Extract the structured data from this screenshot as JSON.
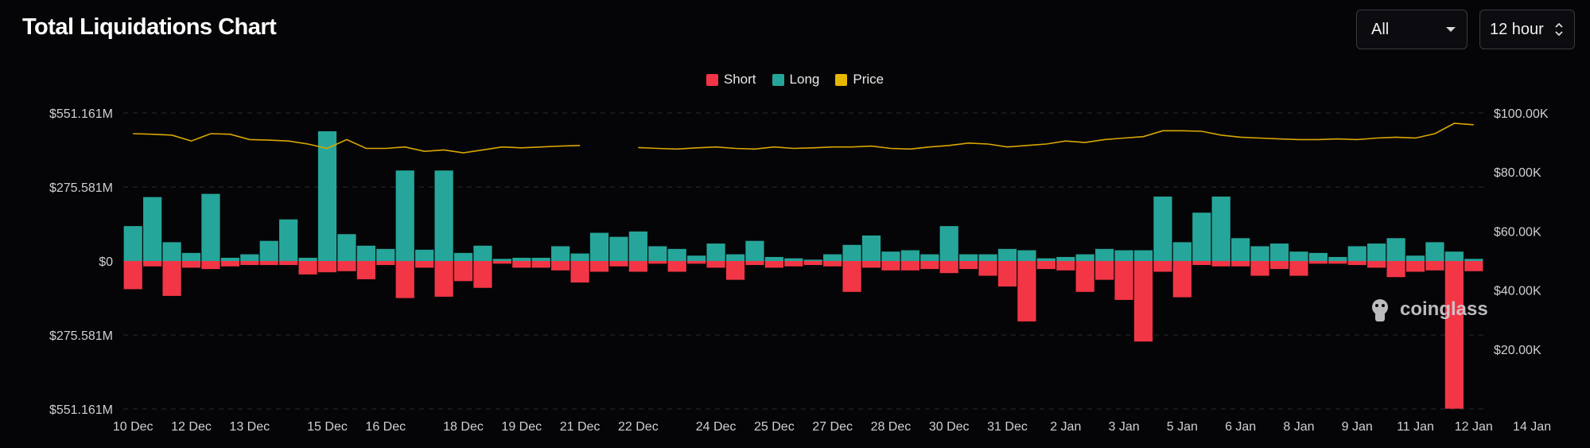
{
  "header": {
    "title": "Total Liquidations Chart",
    "filter_select": "All",
    "interval_select": "12 hour"
  },
  "legend": [
    {
      "label": "Short",
      "color": "#f23645"
    },
    {
      "label": "Long",
      "color": "#26a69a"
    },
    {
      "label": "Price",
      "color": "#e6b800"
    }
  ],
  "watermark": "coinglass",
  "colors": {
    "short": "#f23645",
    "long": "#26a69a",
    "price": "#d9a600",
    "grid": "#26262b",
    "background": "#050507"
  },
  "chart_data": {
    "type": "bar",
    "title": "Total Liquidations Chart",
    "left_axis": {
      "ticks": [
        "$551.161M",
        "$275.581M",
        "$0",
        "$275.581M",
        "$551.161M"
      ],
      "tick_values": [
        551.161,
        275.581,
        0,
        -275.581,
        -551.161
      ],
      "ylim": [
        -551.161,
        551.161
      ],
      "unit": "USD millions"
    },
    "right_axis": {
      "ticks": [
        "$100.00K",
        "$80.00K",
        "$60.00K",
        "$40.00K",
        "$20.00K"
      ],
      "tick_values": [
        100000,
        80000,
        60000,
        40000,
        20000
      ],
      "ylim": [
        0,
        100000
      ]
    },
    "x_labels": [
      "10 Dec",
      "12 Dec",
      "13 Dec",
      "15 Dec",
      "16 Dec",
      "18 Dec",
      "19 Dec",
      "21 Dec",
      "22 Dec",
      "24 Dec",
      "25 Dec",
      "27 Dec",
      "28 Dec",
      "30 Dec",
      "31 Dec",
      "2 Jan",
      "3 Jan",
      "5 Jan",
      "6 Jan",
      "8 Jan",
      "9 Jan",
      "11 Jan",
      "12 Jan",
      "14 Jan"
    ],
    "x_label_positions": [
      0,
      3,
      6,
      10,
      13,
      17,
      20,
      23,
      26,
      30,
      33,
      36,
      39,
      42,
      45,
      48,
      51,
      54,
      57,
      60,
      63,
      66,
      69,
      72
    ],
    "series": [
      {
        "name": "Long",
        "values": [
          130,
          238,
          70,
          30,
          250,
          12,
          25,
          75,
          155,
          12,
          483,
          100,
          57,
          45,
          337,
          42,
          337,
          30,
          57,
          8,
          12,
          12,
          55,
          28,
          105,
          90,
          110,
          55,
          45,
          20,
          65,
          25,
          75,
          15,
          10,
          5,
          25,
          60,
          95,
          35,
          40,
          25,
          130,
          25,
          25,
          45,
          40,
          10,
          15,
          25,
          45,
          40,
          40,
          240,
          70,
          180,
          240,
          85,
          55,
          65,
          35,
          30,
          15,
          55,
          65,
          85,
          20,
          70,
          35,
          8
        ]
      },
      {
        "name": "Short",
        "values": [
          -105,
          -20,
          -130,
          -25,
          -30,
          -20,
          -15,
          -15,
          -15,
          -50,
          -42,
          -38,
          -68,
          -15,
          -138,
          -25,
          -133,
          -75,
          -100,
          -10,
          -25,
          -25,
          -35,
          -80,
          -40,
          -20,
          -40,
          -10,
          -40,
          -10,
          -25,
          -70,
          -15,
          -25,
          -20,
          -15,
          -20,
          -115,
          -25,
          -35,
          -35,
          -30,
          -45,
          -30,
          -55,
          -95,
          -225,
          -30,
          -35,
          -115,
          -70,
          -145,
          -300,
          -40,
          -135,
          -15,
          -20,
          -20,
          -55,
          -30,
          -55,
          -10,
          -10,
          -15,
          -25,
          -60,
          -40,
          -35,
          -550,
          -38
        ]
      },
      {
        "name": "Price",
        "values": [
          93000,
          92800,
          92500,
          90500,
          93000,
          92800,
          91000,
          90800,
          90500,
          89500,
          88000,
          91000,
          88000,
          88000,
          88500,
          87000,
          87500,
          86500,
          87500,
          88500,
          88200,
          88500,
          88800,
          89000,
          null,
          null,
          88300,
          88000,
          87800,
          88200,
          88500,
          88000,
          87800,
          88500,
          88000,
          88200,
          88500,
          88500,
          88800,
          88000,
          87800,
          88500,
          89000,
          89800,
          89500,
          88500,
          89000,
          89500,
          90500,
          90000,
          91000,
          91500,
          92000,
          94000,
          94000,
          93800,
          92500,
          91800,
          91500,
          91200,
          91000,
          91000,
          91200,
          91000,
          91500,
          91800,
          91500,
          93000,
          96500,
          96000
        ]
      }
    ],
    "grid": true,
    "legend_position": "top-center"
  }
}
